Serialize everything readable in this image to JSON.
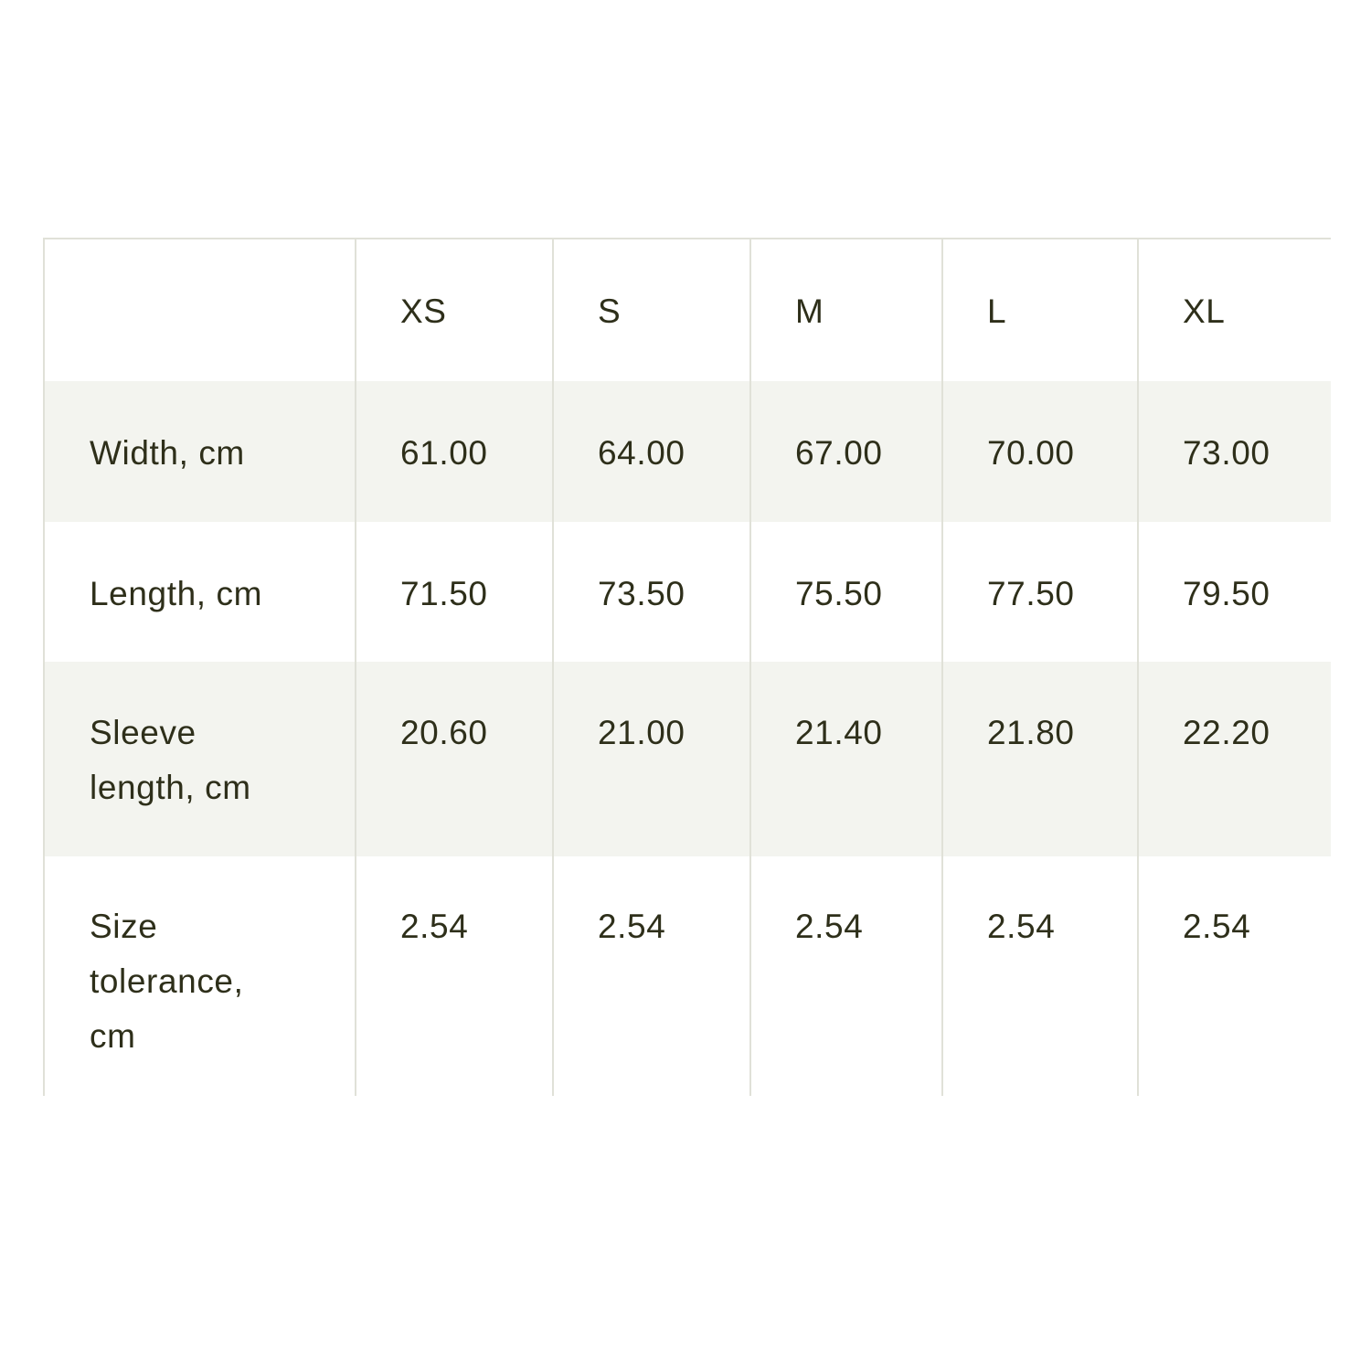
{
  "table": {
    "columns": [
      "",
      "XS",
      "S",
      "M",
      "L",
      "XL"
    ],
    "rows": [
      {
        "label": "Width, cm",
        "values": [
          "61.00",
          "64.00",
          "67.00",
          "70.00",
          "73.00"
        ]
      },
      {
        "label": "Length, cm",
        "values": [
          "71.50",
          "73.50",
          "75.50",
          "77.50",
          "79.50"
        ]
      },
      {
        "label": "Sleeve length, cm",
        "values": [
          "20.60",
          "21.00",
          "21.40",
          "21.80",
          "22.20"
        ]
      },
      {
        "label": "Size tolerance, cm",
        "values": [
          "2.54",
          "2.54",
          "2.54",
          "2.54",
          "2.54"
        ]
      }
    ],
    "colors": {
      "text": "#2e2f1a",
      "border": "#e0e1d8",
      "stripe": "#f3f4ef"
    }
  }
}
